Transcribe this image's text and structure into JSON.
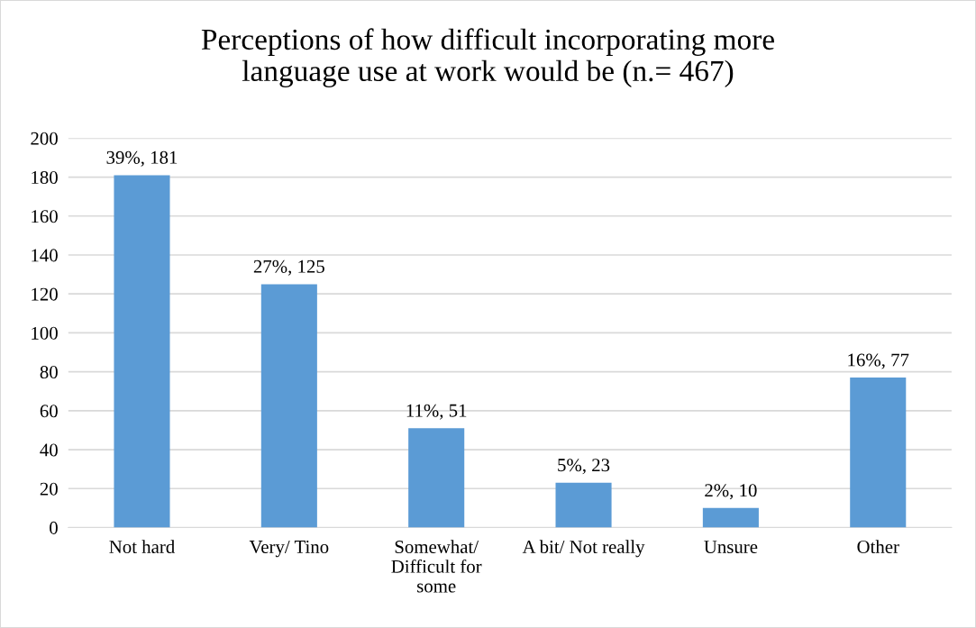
{
  "chart_data": {
    "type": "bar",
    "title": "Perceptions of how difficult incorporating more\nlanguage use at work would be (n.= 467)",
    "categories": [
      "Not hard",
      "Very/ Tino",
      "Somewhat/\nDifficult for\nsome",
      "A bit/ Not really",
      "Unsure",
      "Other"
    ],
    "values": [
      181,
      125,
      51,
      23,
      10,
      77
    ],
    "value_labels": [
      "39%, 181",
      "27%, 125",
      "11%, 51",
      "5%, 23",
      "2%, 10",
      "16%, 77"
    ],
    "color": "#5b9bd5",
    "ylim": [
      0,
      200
    ],
    "yticks": [
      0,
      20,
      40,
      60,
      80,
      100,
      120,
      140,
      160,
      180,
      200
    ],
    "grid": "y",
    "legend": false
  }
}
